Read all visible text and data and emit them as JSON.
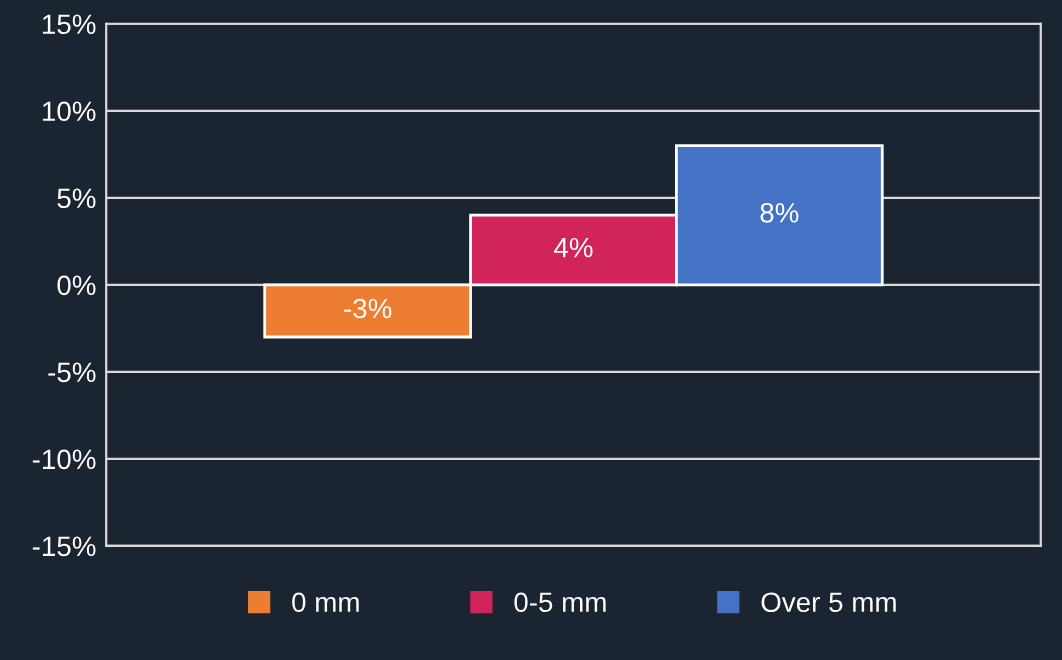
{
  "chart_data": {
    "type": "bar",
    "categories": [
      null,
      null,
      null
    ],
    "series": [
      {
        "name": "0 mm",
        "color": "#ed7d31",
        "values": [
          -3,
          null,
          null
        ],
        "value_labels": [
          "-3%",
          null,
          null
        ]
      },
      {
        "name": "0-5 mm",
        "color": "#d0245a",
        "values": [
          null,
          4,
          null
        ],
        "value_labels": [
          null,
          "4%",
          null
        ]
      },
      {
        "name": "Over 5 mm",
        "color": "#4472c4",
        "values": [
          null,
          null,
          8
        ],
        "value_labels": [
          null,
          null,
          "8%"
        ]
      }
    ],
    "ylim": [
      -15,
      15
    ],
    "yticks": [
      {
        "value": -15,
        "label": "-15%"
      },
      {
        "value": -10,
        "label": "-10%"
      },
      {
        "value": -5,
        "label": "-5%"
      },
      {
        "value": 0,
        "label": "0%"
      },
      {
        "value": 5,
        "label": "5%"
      },
      {
        "value": 10,
        "label": "10%"
      },
      {
        "value": 15,
        "label": "15%"
      }
    ],
    "grid": "y",
    "legend": "bottom"
  }
}
